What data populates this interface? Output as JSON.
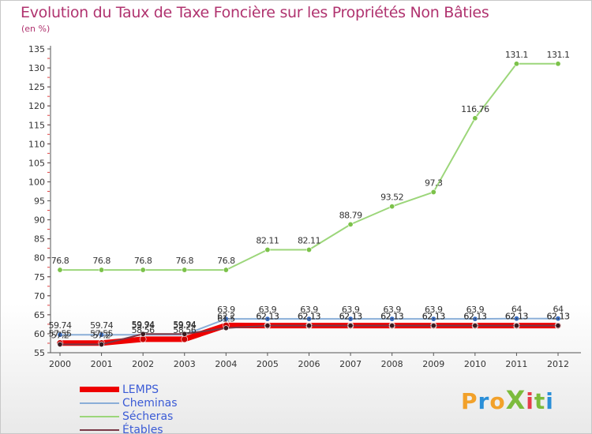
{
  "header": {
    "title": "Evolution du Taux de Taxe Foncière sur les Propriétés Non Bâties",
    "unit": "(en %)"
  },
  "logo": {
    "text": "ProXiti",
    "colors": [
      "#f2a12a",
      "#2a8fd8",
      "#7cbb3c",
      "#e63c4a"
    ]
  },
  "chart_data": {
    "type": "line",
    "title": "Evolution du Taux de Taxe Foncière sur les Propriétés Non Bâties",
    "ylabel": "(en %)",
    "xlabel": "",
    "ylim": [
      55,
      135
    ],
    "yticks": [
      55,
      60,
      65,
      70,
      75,
      80,
      85,
      90,
      95,
      100,
      105,
      110,
      115,
      120,
      125,
      130,
      135
    ],
    "grid": false,
    "x": [
      2000,
      2001,
      2002,
      2003,
      2004,
      2005,
      2006,
      2007,
      2008,
      2009,
      2010,
      2011,
      2012
    ],
    "legend_position": "bottom-left",
    "series": [
      {
        "name": "LEMPS",
        "color": "#ee0000",
        "values": [
          57.55,
          57.55,
          58.56,
          58.56,
          62.2,
          62.13,
          62.13,
          62.13,
          62.13,
          62.13,
          62.13,
          62.13,
          62.13
        ],
        "labels": [
          "57.55",
          "57.55",
          "58.56",
          "58.56",
          "62.2",
          "62.13",
          "62.13",
          "62.13",
          "62.13",
          "62.13",
          "62.13",
          "62.13",
          "62.13"
        ]
      },
      {
        "name": "Cheminas",
        "color": "#8aaed8",
        "values": [
          59.74,
          59.74,
          59.74,
          59.74,
          63.9,
          63.9,
          63.9,
          63.9,
          63.9,
          63.9,
          63.9,
          64,
          64
        ],
        "labels": [
          "59.74",
          "59.74",
          "59.74",
          "59.74",
          "63.9",
          "63.9",
          "63.9",
          "63.9",
          "63.9",
          "63.9",
          "63.9",
          "64",
          "64"
        ]
      },
      {
        "name": "Sécheras",
        "color": "#9cd67a",
        "values": [
          76.8,
          76.8,
          76.8,
          76.8,
          76.8,
          82.11,
          82.11,
          88.79,
          93.52,
          97.3,
          116.76,
          131.1,
          131.1
        ],
        "labels": [
          "76.8",
          "76.8",
          "76.8",
          "76.8",
          "76.8",
          "82.11",
          "82.11",
          "88.79",
          "93.52",
          "97.3",
          "116.76",
          "131.1",
          "131.1"
        ]
      },
      {
        "name": "Étables",
        "color": "#7a3a48",
        "values": [
          57.2,
          57.2,
          59.94,
          59.94,
          61.5,
          62.13,
          62.13,
          62.13,
          62.13,
          62.13,
          62.13,
          62.13,
          62.13
        ],
        "labels": [
          "57.2",
          "57.2",
          "59.94",
          "59.94",
          "61.5",
          "62.13",
          "62.13",
          "62.13",
          "62.13",
          "62.13",
          "62.13",
          "62.13",
          "62.13"
        ]
      }
    ]
  }
}
